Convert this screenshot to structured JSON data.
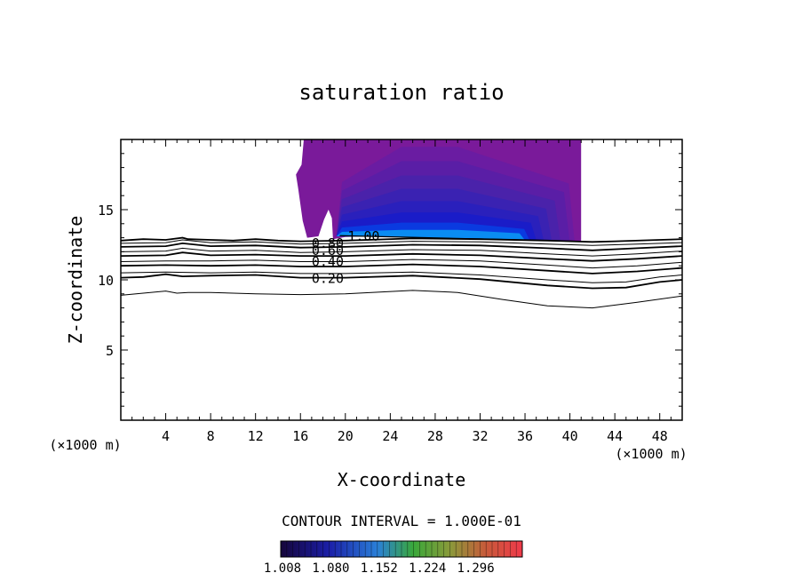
{
  "chart_data": {
    "type": "contour",
    "title": "saturation ratio",
    "xlabel": "X-coordinate",
    "ylabel": "Z-coordinate",
    "x_unit_left": "(×1000 m)",
    "x_unit_right": "(×1000 m)",
    "xlim": [
      0,
      50
    ],
    "ylim": [
      0,
      20
    ],
    "xticks": [
      "4",
      "8",
      "12",
      "16",
      "20",
      "24",
      "28",
      "32",
      "36",
      "40",
      "44",
      "48"
    ],
    "yticks": [
      "5",
      "10",
      "15"
    ],
    "xtick_values": [
      4,
      8,
      12,
      16,
      20,
      24,
      28,
      32,
      36,
      40,
      44,
      48
    ],
    "ytick_values": [
      5,
      10,
      15
    ],
    "contour_interval_text": "CONTOUR INTERVAL = 1.000E-01",
    "contour_labels": [
      {
        "text": "1.00",
        "x": 20.2,
        "z": 13.1
      },
      {
        "text": "0.80",
        "x": 17.0,
        "z": 12.6
      },
      {
        "text": "0.60",
        "x": 17.0,
        "z": 12.1
      },
      {
        "text": "0.40",
        "x": 17.0,
        "z": 11.3
      },
      {
        "text": "0.20",
        "x": 17.0,
        "z": 10.1
      }
    ],
    "contour_lines": [
      {
        "level": 1.0,
        "points": [
          [
            0,
            12.8
          ],
          [
            2,
            12.9
          ],
          [
            4,
            12.85
          ],
          [
            5.5,
            13.0
          ],
          [
            6,
            12.9
          ],
          [
            8,
            12.85
          ],
          [
            10,
            12.8
          ],
          [
            12,
            12.9
          ],
          [
            14,
            12.8
          ],
          [
            16,
            12.75
          ],
          [
            20,
            12.8
          ],
          [
            26,
            12.95
          ],
          [
            32,
            12.9
          ],
          [
            38,
            12.8
          ],
          [
            42,
            12.7
          ],
          [
            44,
            12.75
          ],
          [
            48,
            12.85
          ],
          [
            50,
            12.9
          ]
        ]
      },
      {
        "level": 0.9,
        "points": [
          [
            0,
            12.6
          ],
          [
            4,
            12.65
          ],
          [
            5.5,
            12.85
          ],
          [
            8,
            12.65
          ],
          [
            12,
            12.7
          ],
          [
            16,
            12.55
          ],
          [
            20,
            12.6
          ],
          [
            26,
            12.75
          ],
          [
            32,
            12.7
          ],
          [
            38,
            12.55
          ],
          [
            42,
            12.45
          ],
          [
            46,
            12.55
          ],
          [
            50,
            12.65
          ]
        ]
      },
      {
        "level": 0.8,
        "points": [
          [
            0,
            12.35
          ],
          [
            4,
            12.4
          ],
          [
            5.5,
            12.6
          ],
          [
            8,
            12.4
          ],
          [
            12,
            12.45
          ],
          [
            16,
            12.3
          ],
          [
            20,
            12.35
          ],
          [
            26,
            12.5
          ],
          [
            32,
            12.45
          ],
          [
            38,
            12.25
          ],
          [
            42,
            12.1
          ],
          [
            46,
            12.25
          ],
          [
            50,
            12.4
          ]
        ]
      },
      {
        "level": 0.7,
        "points": [
          [
            0,
            12.0
          ],
          [
            4,
            12.05
          ],
          [
            5.5,
            12.25
          ],
          [
            8,
            12.05
          ],
          [
            12,
            12.1
          ],
          [
            16,
            11.95
          ],
          [
            20,
            12.0
          ],
          [
            26,
            12.15
          ],
          [
            32,
            12.1
          ],
          [
            38,
            11.85
          ],
          [
            42,
            11.7
          ],
          [
            46,
            11.85
          ],
          [
            50,
            12.05
          ]
        ]
      },
      {
        "level": 0.6,
        "points": [
          [
            0,
            11.7
          ],
          [
            4,
            11.75
          ],
          [
            5.5,
            11.95
          ],
          [
            8,
            11.75
          ],
          [
            12,
            11.8
          ],
          [
            16,
            11.7
          ],
          [
            20,
            11.7
          ],
          [
            26,
            11.85
          ],
          [
            32,
            11.75
          ],
          [
            38,
            11.5
          ],
          [
            42,
            11.35
          ],
          [
            46,
            11.5
          ],
          [
            50,
            11.7
          ]
        ]
      },
      {
        "level": 0.5,
        "points": [
          [
            0,
            11.3
          ],
          [
            4,
            11.35
          ],
          [
            8,
            11.35
          ],
          [
            12,
            11.4
          ],
          [
            16,
            11.3
          ],
          [
            20,
            11.3
          ],
          [
            26,
            11.45
          ],
          [
            32,
            11.35
          ],
          [
            38,
            11.05
          ],
          [
            42,
            10.85
          ],
          [
            46,
            11.0
          ],
          [
            50,
            11.25
          ]
        ]
      },
      {
        "level": 0.4,
        "points": [
          [
            0,
            11.0
          ],
          [
            4,
            11.05
          ],
          [
            8,
            11.0
          ],
          [
            12,
            11.05
          ],
          [
            16,
            10.95
          ],
          [
            20,
            10.95
          ],
          [
            26,
            11.1
          ],
          [
            32,
            10.95
          ],
          [
            38,
            10.65
          ],
          [
            42,
            10.45
          ],
          [
            46,
            10.6
          ],
          [
            50,
            10.85
          ]
        ]
      },
      {
        "level": 0.3,
        "points": [
          [
            0,
            10.5
          ],
          [
            4,
            10.55
          ],
          [
            8,
            10.5
          ],
          [
            12,
            10.55
          ],
          [
            16,
            10.45
          ],
          [
            20,
            10.45
          ],
          [
            26,
            10.55
          ],
          [
            32,
            10.35
          ],
          [
            38,
            10.0
          ],
          [
            42,
            9.8
          ],
          [
            45,
            9.85
          ],
          [
            48,
            10.2
          ],
          [
            50,
            10.35
          ]
        ]
      },
      {
        "level": 0.2,
        "points": [
          [
            0,
            10.15
          ],
          [
            2,
            10.2
          ],
          [
            4,
            10.4
          ],
          [
            5.5,
            10.25
          ],
          [
            8,
            10.3
          ],
          [
            12,
            10.35
          ],
          [
            16,
            10.15
          ],
          [
            20,
            10.15
          ],
          [
            26,
            10.3
          ],
          [
            32,
            10.05
          ],
          [
            38,
            9.6
          ],
          [
            42,
            9.4
          ],
          [
            45,
            9.45
          ],
          [
            48,
            9.85
          ],
          [
            50,
            10.0
          ]
        ]
      },
      {
        "level": 0.1,
        "points": [
          [
            0,
            8.9
          ],
          [
            4,
            9.2
          ],
          [
            5,
            9.05
          ],
          [
            6,
            9.1
          ],
          [
            8,
            9.1
          ],
          [
            12,
            9.0
          ],
          [
            16,
            8.95
          ],
          [
            20,
            9.0
          ],
          [
            26,
            9.25
          ],
          [
            30,
            9.1
          ],
          [
            34,
            8.6
          ],
          [
            38,
            8.15
          ],
          [
            42,
            8.0
          ],
          [
            46,
            8.4
          ],
          [
            50,
            8.85
          ]
        ]
      }
    ],
    "filled_region": {
      "x_range": [
        15.5,
        41.0
      ],
      "z_range": [
        12.7,
        20.0
      ],
      "levels_min": 1.008,
      "levels_max": 1.296,
      "max_location": [
        26,
        13.2
      ]
    },
    "colorbar": {
      "ticks": [
        "1.008",
        "1.080",
        "1.152",
        "1.224",
        "1.296"
      ],
      "min": 1.008,
      "max": 1.296
    },
    "colors": {
      "outer": "#7a1a9a",
      "mid": "#4a22a8",
      "inner": "#1a1cc8",
      "core": "#0a6cf0"
    }
  }
}
